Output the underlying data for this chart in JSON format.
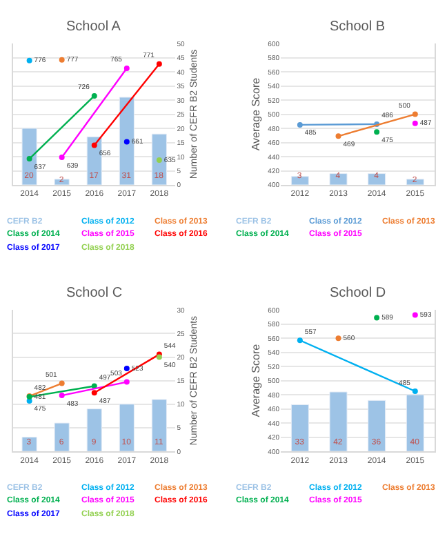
{
  "chart_data": [
    {
      "type": "bar",
      "title": "School A",
      "y2label": "Number of CEFR B2 Students",
      "categories": [
        "2014",
        "2015",
        "2016",
        "2017",
        "2018"
      ],
      "ylim": [
        600,
        800
      ],
      "y2lim": [
        0,
        50
      ],
      "y2ticks": [
        0,
        5,
        10,
        15,
        20,
        25,
        30,
        35,
        40,
        45,
        50
      ],
      "grid": true,
      "legend": "bottom",
      "marker": "circle",
      "line_style": "solid",
      "data_labels": true,
      "series": [
        {
          "name": "CEFR B2",
          "axis": "y2",
          "color": "#9dc3e6",
          "values": [
            20,
            2,
            17,
            31,
            18
          ]
        },
        {
          "name": "Class of 2012",
          "type": "line",
          "axis": "y",
          "color": "#00b0f0",
          "values": [
            776,
            null,
            null,
            null,
            null
          ]
        },
        {
          "name": "Class of 2013",
          "type": "line",
          "axis": "y",
          "color": "#ed7d31",
          "values": [
            null,
            777,
            null,
            null,
            null
          ]
        },
        {
          "name": "Class of 2014",
          "type": "line",
          "axis": "y",
          "color": "#00b050",
          "values": [
            637,
            null,
            726,
            null,
            null
          ]
        },
        {
          "name": "Class of 2015",
          "type": "line",
          "axis": "y",
          "color": "#ff00ff",
          "values": [
            null,
            639,
            null,
            765,
            null
          ]
        },
        {
          "name": "Class of 2016",
          "type": "line",
          "axis": "y",
          "color": "#ff0000",
          "values": [
            null,
            null,
            656,
            null,
            771
          ]
        },
        {
          "name": "Class of 2017",
          "type": "line",
          "axis": "y",
          "color": "#0000ff",
          "values": [
            null,
            null,
            null,
            661,
            null
          ]
        },
        {
          "name": "Class of 2018",
          "type": "line",
          "axis": "y",
          "color": "#92d050",
          "values": [
            null,
            null,
            null,
            null,
            635
          ]
        }
      ]
    },
    {
      "type": "bar",
      "title": "School B",
      "ylabel": "Average Score",
      "categories": [
        "2012",
        "2013",
        "2014",
        "2015"
      ],
      "ylim": [
        400,
        600
      ],
      "yticks": [
        400,
        420,
        440,
        460,
        480,
        500,
        520,
        540,
        560,
        580,
        600
      ],
      "y2lim": [
        0,
        50
      ],
      "grid": true,
      "legend": "bottom",
      "marker": "circle",
      "line_style": "solid",
      "data_labels": true,
      "series": [
        {
          "name": "CEFR B2",
          "axis": "y2",
          "color": "#9dc3e6",
          "values": [
            3,
            4,
            4,
            2
          ]
        },
        {
          "name": "Class of 2012",
          "type": "line",
          "axis": "y",
          "color": "#5b9bd5",
          "values": [
            485,
            null,
            486,
            null
          ]
        },
        {
          "name": "Class of 2013",
          "type": "line",
          "axis": "y",
          "color": "#ed7d31",
          "values": [
            null,
            469,
            null,
            500
          ]
        },
        {
          "name": "Class of 2014",
          "type": "line",
          "axis": "y",
          "color": "#00b050",
          "values": [
            null,
            null,
            475,
            null
          ]
        },
        {
          "name": "Class of 2015",
          "type": "line",
          "axis": "y",
          "color": "#ff00ff",
          "values": [
            null,
            null,
            null,
            487
          ]
        }
      ]
    },
    {
      "type": "bar",
      "title": "School C",
      "y2label": "Number of CEFR B2 Students",
      "categories": [
        "2014",
        "2015",
        "2016",
        "2017",
        "2018"
      ],
      "ylim": [
        400,
        610
      ],
      "y2lim": [
        0,
        30
      ],
      "y2ticks": [
        0,
        5,
        10,
        15,
        20,
        25,
        30
      ],
      "grid": true,
      "legend": "bottom",
      "marker": "circle",
      "line_style": "solid",
      "data_labels": true,
      "series": [
        {
          "name": "CEFR B2",
          "axis": "y2",
          "color": "#9dc3e6",
          "values": [
            3,
            6,
            9,
            10,
            11
          ]
        },
        {
          "name": "Class of 2012",
          "type": "line",
          "axis": "y",
          "color": "#00b0f0",
          "values": [
            475,
            null,
            null,
            null,
            null
          ]
        },
        {
          "name": "Class of 2013",
          "type": "line",
          "axis": "y",
          "color": "#ed7d31",
          "values": [
            482,
            501,
            null,
            null,
            null
          ]
        },
        {
          "name": "Class of 2014",
          "type": "line",
          "axis": "y",
          "color": "#00b050",
          "values": [
            481,
            null,
            497,
            null,
            null
          ]
        },
        {
          "name": "Class of 2015",
          "type": "line",
          "axis": "y",
          "color": "#ff00ff",
          "values": [
            null,
            483,
            null,
            503,
            null
          ]
        },
        {
          "name": "Class of 2016",
          "type": "line",
          "axis": "y",
          "color": "#ff0000",
          "values": [
            null,
            null,
            487,
            null,
            544
          ]
        },
        {
          "name": "Class of 2017",
          "type": "line",
          "axis": "y",
          "color": "#0000ff",
          "values": [
            null,
            null,
            null,
            523,
            null
          ]
        },
        {
          "name": "Class of 2018",
          "type": "line",
          "axis": "y",
          "color": "#92d050",
          "values": [
            null,
            null,
            null,
            null,
            540
          ]
        }
      ]
    },
    {
      "type": "bar",
      "title": "School D",
      "ylabel": "Average Score",
      "categories": [
        "2012",
        "2013",
        "2014",
        "2015"
      ],
      "ylim": [
        400,
        600
      ],
      "yticks": [
        400,
        420,
        440,
        460,
        480,
        500,
        520,
        540,
        560,
        580,
        600
      ],
      "y2lim": [
        0,
        100
      ],
      "grid": true,
      "legend": "bottom",
      "marker": "circle",
      "line_style": "solid",
      "data_labels": true,
      "series": [
        {
          "name": "CEFR B2",
          "axis": "y2",
          "color": "#9dc3e6",
          "values": [
            33,
            42,
            36,
            40
          ]
        },
        {
          "name": "Class of 2012",
          "type": "line",
          "axis": "y",
          "color": "#00b0f0",
          "values": [
            557,
            null,
            null,
            485
          ]
        },
        {
          "name": "Class of 2013",
          "type": "line",
          "axis": "y",
          "color": "#ed7d31",
          "values": [
            null,
            560,
            null,
            null
          ]
        },
        {
          "name": "Class of 2014",
          "type": "line",
          "axis": "y",
          "color": "#00b050",
          "values": [
            null,
            null,
            589,
            null
          ]
        },
        {
          "name": "Class of 2015",
          "type": "line",
          "axis": "y",
          "color": "#ff00ff",
          "values": [
            null,
            null,
            null,
            593
          ]
        }
      ]
    }
  ]
}
